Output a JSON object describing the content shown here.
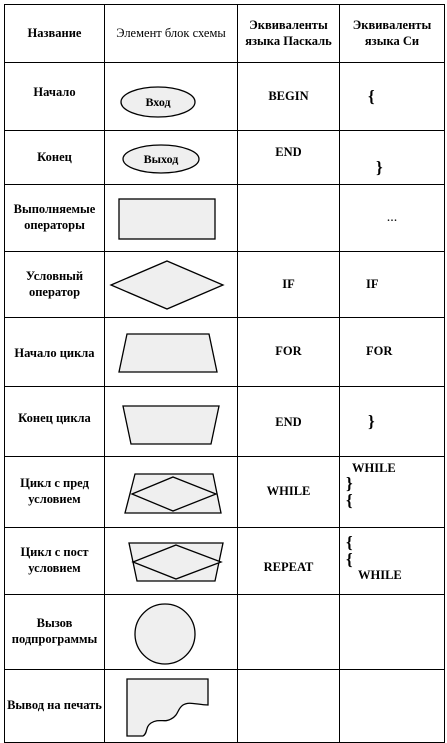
{
  "header": {
    "name": "Название",
    "shape": "Элемент блок схемы",
    "pascal": "Эквиваленты языка Паскаль",
    "c": "Эквиваленты языка Си"
  },
  "rows": [
    {
      "name": "Начало",
      "shape_label": "Вход",
      "pascal": "BEGIN",
      "c": "{"
    },
    {
      "name": "Конец",
      "shape_label": "Выход",
      "pascal": "END",
      "c": "}"
    },
    {
      "name": "Выполняемые операторы",
      "pascal": "",
      "c": "..."
    },
    {
      "name": "Условный оператор",
      "pascal": "IF",
      "c": "IF"
    },
    {
      "name": "Начало цикла",
      "pascal": "FOR",
      "c": "FOR"
    },
    {
      "name": "Конец цикла",
      "pascal": "END",
      "c": "}"
    },
    {
      "name": "Цикл с пред условием",
      "pascal": "WHILE",
      "c_lines": [
        "WHILE",
        "}",
        "{"
      ]
    },
    {
      "name": "Цикл с пост условием",
      "pascal": "REPEAT",
      "c_lines": [
        "{",
        "{",
        "WHILE"
      ]
    },
    {
      "name": "Вызов подпрограммы",
      "pascal": "",
      "c": ""
    },
    {
      "name": "Вывод на печать",
      "pascal": "",
      "c": ""
    }
  ],
  "colors": {
    "shape_fill": "#efefef",
    "border": "#000000"
  }
}
